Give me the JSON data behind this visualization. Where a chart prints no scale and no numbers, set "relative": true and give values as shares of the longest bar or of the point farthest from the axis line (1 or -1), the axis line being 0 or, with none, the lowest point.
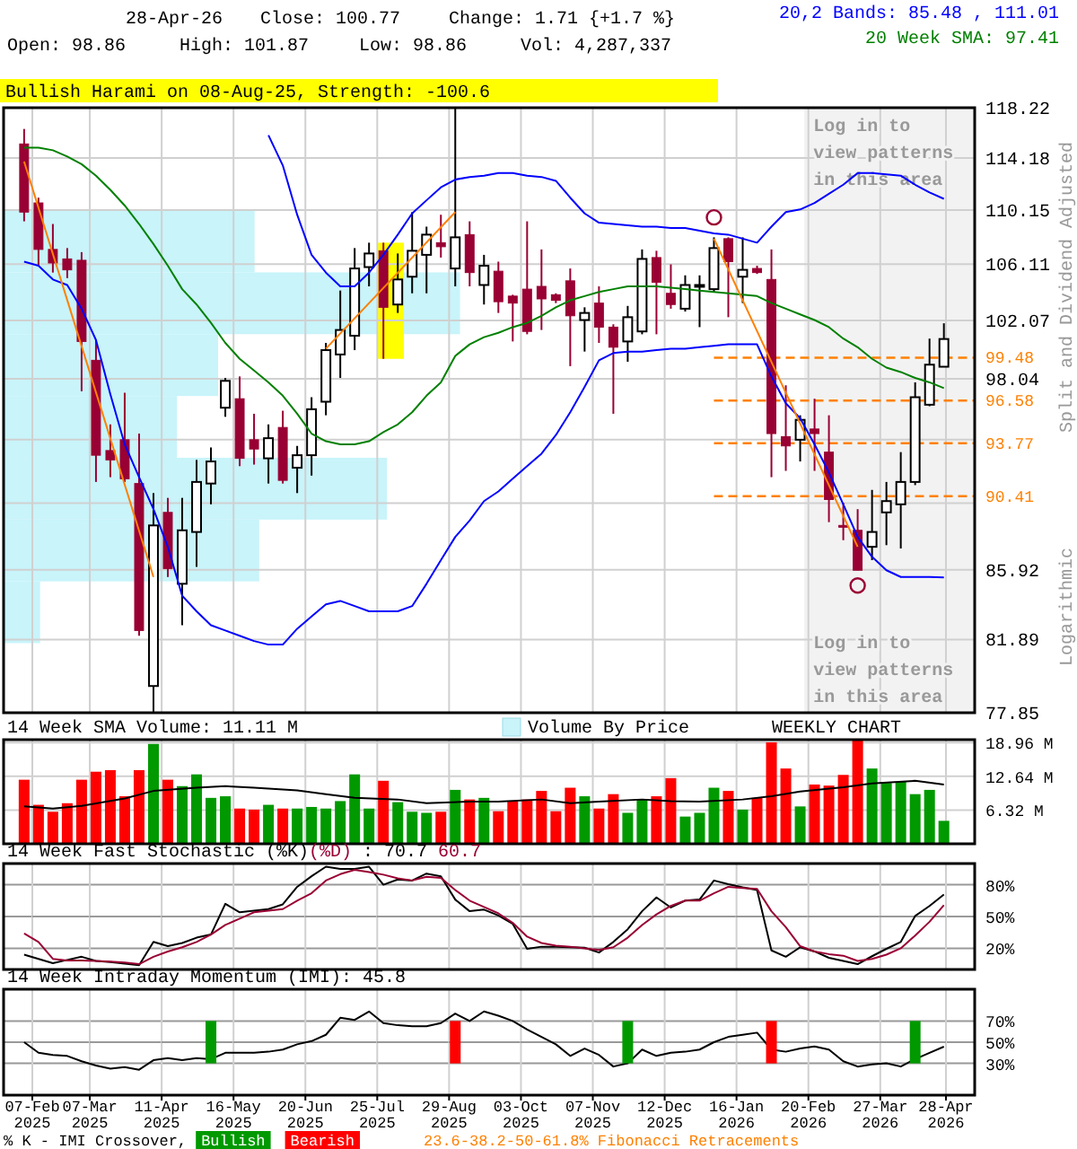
{
  "chart_data": [
    {
      "type": "candlestick",
      "title": "Bullish Harami on 08-Aug-25, Strength: -100.6",
      "log": true,
      "grid": true,
      "legend": "top right",
      "tick_labels": "y",
      "x": [
        "2025-02-03",
        "2025-02-10",
        "2025-02-17",
        "2025-02-24",
        "2025-03-03",
        "2025-03-10",
        "2025-03-17",
        "2025-03-24",
        "2025-03-31",
        "2025-04-07",
        "2025-04-14",
        "2025-04-21",
        "2025-04-28",
        "2025-05-05",
        "2025-05-12",
        "2025-05-19",
        "2025-05-26",
        "2025-06-02",
        "2025-06-09",
        "2025-06-16",
        "2025-06-23",
        "2025-06-30",
        "2025-07-07",
        "2025-07-14",
        "2025-07-21",
        "2025-07-28",
        "2025-08-04",
        "2025-08-11",
        "2025-08-18",
        "2025-08-25",
        "2025-09-01",
        "2025-09-08",
        "2025-09-15",
        "2025-09-22",
        "2025-09-29",
        "2025-10-06",
        "2025-10-13",
        "2025-10-20",
        "2025-10-27",
        "2025-11-03",
        "2025-11-10",
        "2025-11-17",
        "2025-11-24",
        "2025-12-01",
        "2025-12-08",
        "2025-12-15",
        "2025-12-22",
        "2025-12-29",
        "2026-01-05",
        "2026-01-12",
        "2026-01-19",
        "2026-01-26",
        "2026-02-02",
        "2026-02-09",
        "2026-02-16",
        "2026-02-23",
        "2026-03-02",
        "2026-03-09",
        "2026-03-16",
        "2026-03-23",
        "2026-03-30",
        "2026-04-06",
        "2026-04-13",
        "2026-04-20",
        "2026-04-27"
      ],
      "ohlc": [
        [
          115.3,
          116.5,
          109.3,
          110.0
        ],
        [
          110.7,
          111.1,
          106.0,
          107.2
        ],
        [
          107.2,
          109.1,
          105.5,
          106.2
        ],
        [
          106.5,
          107.3,
          105.1,
          105.7
        ],
        [
          106.4,
          107.0,
          97.2,
          100.6
        ],
        [
          99.3,
          100.7,
          91.3,
          93.0
        ],
        [
          93.3,
          95.0,
          91.6,
          92.7
        ],
        [
          94.0,
          97.1,
          91.3,
          91.5
        ],
        [
          91.2,
          94.4,
          82.1,
          82.4
        ],
        [
          79.3,
          90.6,
          77.9,
          88.6
        ],
        [
          89.4,
          90.3,
          85.5,
          86.0
        ],
        [
          85.1,
          90.3,
          82.7,
          88.3
        ],
        [
          88.2,
          92.7,
          86.1,
          91.3
        ],
        [
          91.2,
          93.5,
          89.9,
          92.6
        ],
        [
          96.1,
          98.1,
          95.5,
          97.9
        ],
        [
          96.7,
          98.2,
          92.3,
          92.8
        ],
        [
          94.0,
          95.7,
          92.4,
          93.4
        ],
        [
          92.8,
          95.0,
          91.2,
          94.1
        ],
        [
          94.8,
          95.9,
          91.2,
          91.4
        ],
        [
          92.2,
          93.6,
          90.6,
          93.0
        ],
        [
          93.0,
          96.8,
          91.7,
          96.0
        ],
        [
          96.5,
          100.5,
          95.6,
          100.0
        ],
        [
          99.7,
          104.2,
          98.1,
          101.4
        ],
        [
          101.0,
          107.3,
          100.0,
          105.8
        ],
        [
          105.9,
          107.7,
          104.5,
          106.9
        ],
        [
          107.1,
          107.7,
          99.4,
          103.0
        ],
        [
          103.2,
          106.9,
          102.6,
          105.0
        ],
        [
          105.2,
          110.0,
          104.0,
          107.1
        ],
        [
          106.8,
          108.9,
          104.0,
          108.3
        ],
        [
          107.7,
          109.8,
          106.6,
          107.4
        ],
        [
          105.8,
          118.2,
          104.5,
          108.1
        ],
        [
          108.3,
          109.3,
          104.5,
          105.5
        ],
        [
          104.6,
          106.8,
          103.2,
          106.0
        ],
        [
          105.6,
          106.3,
          102.6,
          103.4
        ],
        [
          103.8,
          103.9,
          100.6,
          103.3
        ],
        [
          104.3,
          109.3,
          101.1,
          101.3
        ],
        [
          104.5,
          107.2,
          101.4,
          103.6
        ],
        [
          103.9,
          104.0,
          103.3,
          103.5
        ],
        [
          104.9,
          105.8,
          98.9,
          102.4
        ],
        [
          102.1,
          103.0,
          99.9,
          102.6
        ],
        [
          103.3,
          104.5,
          100.5,
          101.6
        ],
        [
          101.6,
          101.8,
          95.7,
          100.2
        ],
        [
          100.6,
          103.1,
          99.2,
          102.3
        ],
        [
          101.3,
          107.2,
          101.1,
          106.5
        ],
        [
          106.6,
          107.1,
          101.1,
          104.8
        ],
        [
          104.0,
          106.1,
          102.9,
          103.2
        ],
        [
          102.9,
          105.3,
          102.7,
          104.6
        ],
        [
          104.6,
          105.3,
          101.6,
          104.6
        ],
        [
          104.3,
          108.1,
          104.1,
          107.3
        ],
        [
          108.0,
          108.1,
          102.3,
          106.3
        ],
        [
          105.2,
          108.1,
          103.3,
          105.7
        ],
        [
          105.8,
          106.0,
          105.4,
          105.5
        ],
        [
          105.0,
          107.2,
          91.6,
          94.4
        ],
        [
          94.2,
          97.6,
          92.0,
          93.6
        ],
        [
          94.0,
          95.6,
          92.6,
          95.3
        ],
        [
          94.7,
          96.7,
          92.0,
          94.4
        ],
        [
          93.2,
          95.6,
          88.8,
          90.2
        ],
        [
          88.6,
          90.0,
          87.7,
          88.5
        ],
        [
          88.3,
          89.6,
          85.9,
          85.9
        ],
        [
          87.3,
          90.8,
          86.5,
          88.2
        ],
        [
          89.4,
          91.3,
          87.4,
          90.1
        ],
        [
          89.9,
          93.2,
          87.2,
          91.3
        ],
        [
          91.3,
          97.8,
          91.1,
          96.8
        ],
        [
          96.3,
          100.8,
          96.2,
          99.0
        ],
        [
          98.86,
          101.87,
          98.86,
          100.77
        ]
      ],
      "series": [
        {
          "type": "line",
          "name": "20,2 Bands: 85.48 , 111.01",
          "color": "#0000ff",
          "values": [
            null,
            null,
            null,
            null,
            null,
            null,
            null,
            null,
            null,
            null,
            null,
            null,
            null,
            null,
            null,
            null,
            null,
            116.0,
            113.6,
            109.8,
            106.8,
            105.5,
            104.5,
            104.5,
            105.5,
            106.8,
            108.3,
            109.9,
            110.9,
            111.9,
            112.5,
            112.7,
            112.8,
            113.0,
            113.0,
            112.8,
            112.7,
            112.4,
            111.1,
            109.9,
            109.2,
            109.1,
            109.0,
            108.9,
            108.9,
            108.8,
            108.8,
            108.6,
            108.4,
            108.3,
            108.0,
            107.7,
            108.9,
            110.0,
            110.2,
            110.7,
            111.4,
            112.1,
            113.0,
            113.0,
            112.9,
            112.8,
            112.1,
            111.5,
            111.01
          ]
        },
        {
          "type": "line",
          "color": "#0000ff",
          "values": [
            106.3,
            106.0,
            105.0,
            104.6,
            102.9,
            100.7,
            97.0,
            93.7,
            91.6,
            89.6,
            87.3,
            84.4,
            83.5,
            82.7,
            82.4,
            82.1,
            81.8,
            81.6,
            81.6,
            82.5,
            83.2,
            83.9,
            84.1,
            83.8,
            83.5,
            83.5,
            83.5,
            83.8,
            85.1,
            86.5,
            87.9,
            88.9,
            90.1,
            90.7,
            91.5,
            92.3,
            93.1,
            94.3,
            95.8,
            97.5,
            99.3,
            99.8,
            99.9,
            99.9,
            100.0,
            100.1,
            100.1,
            100.2,
            100.3,
            100.4,
            100.4,
            100.4,
            98.2,
            96.4,
            95.4,
            93.7,
            91.9,
            89.9,
            87.9,
            86.7,
            85.9,
            85.5,
            85.5,
            85.5,
            85.48
          ]
        },
        {
          "type": "line",
          "name": "20 Week SMA: 97.41",
          "color": "#008000",
          "values": [
            115.0,
            115.0,
            114.8,
            114.3,
            113.7,
            112.8,
            111.7,
            110.5,
            109.1,
            107.6,
            106.0,
            104.3,
            103.2,
            101.9,
            100.5,
            99.4,
            98.6,
            97.8,
            96.9,
            95.7,
            94.4,
            93.9,
            93.7,
            93.7,
            93.9,
            94.5,
            95.0,
            95.8,
            96.9,
            97.8,
            99.6,
            100.4,
            100.9,
            101.2,
            101.6,
            101.9,
            102.4,
            103.0,
            103.5,
            103.8,
            104.1,
            104.3,
            104.5,
            104.5,
            104.5,
            104.4,
            104.3,
            104.2,
            104.1,
            104.0,
            103.9,
            103.8,
            103.3,
            102.9,
            102.5,
            102.1,
            101.6,
            100.8,
            100.2,
            99.4,
            98.8,
            98.5,
            98.1,
            97.8,
            97.41
          ]
        },
        {
          "type": "line",
          "color": "#ff8000",
          "x": [
            "2025-02-03",
            "2025-04-07"
          ],
          "values": [
            113.9,
            85.5
          ]
        },
        {
          "type": "line",
          "color": "#ff8000",
          "x": [
            "2025-06-30",
            "2025-09-01"
          ],
          "values": [
            100.1,
            110.0
          ]
        },
        {
          "type": "line",
          "color": "#ff8000",
          "x": [
            "2026-01-05",
            "2026-03-16"
          ],
          "values": [
            108.0,
            87.3
          ]
        },
        {
          "type": "scatter",
          "marker": "circle",
          "color": "#990033",
          "x": [
            "2026-01-05",
            "2026-03-16"
          ],
          "values": [
            109.6,
            85.0
          ]
        }
      ],
      "xlim": [
        "2025-01-24",
        "2026-05-12"
      ],
      "xticks": [
        {
          "value": "2025-02-07",
          "label": null
        },
        {
          "value": "2025-03-07",
          "label": null
        },
        {
          "value": "2025-04-11",
          "label": null
        },
        {
          "value": "2025-05-16",
          "label": null
        },
        {
          "value": "2025-06-20",
          "label": null
        },
        {
          "value": "2025-07-25",
          "label": null
        },
        {
          "value": "2025-08-29",
          "label": null
        },
        {
          "value": "2025-10-03",
          "label": null
        },
        {
          "value": "2025-11-07",
          "label": null
        },
        {
          "value": "2025-12-12",
          "label": null
        },
        {
          "value": "2026-01-16",
          "label": null
        },
        {
          "value": "2026-02-20",
          "label": null
        },
        {
          "value": "2026-03-27",
          "label": null
        },
        {
          "value": "2026-04-28",
          "label": null
        }
      ],
      "ylim": [
        77.85,
        118.22
      ],
      "yticks": [
        118.22,
        114.18,
        110.15,
        106.11,
        102.07,
        98.04,
        {
          "value": 94.0,
          "label": null
        },
        {
          "value": 89.97,
          "label": null
        },
        85.92,
        81.89,
        77.85
      ],
      "ref_lines": [
        {
          "axis": "y",
          "value": 99.48,
          "label": "99.48",
          "color": "#ff8000",
          "line_style": "dashed"
        },
        {
          "axis": "y",
          "value": 96.58,
          "label": "96.58",
          "color": "#ff8000",
          "line_style": "dashed"
        },
        {
          "axis": "y",
          "value": 93.77,
          "label": "93.77",
          "color": "#ff8000",
          "line_style": "dashed"
        },
        {
          "axis": "y",
          "value": 90.41,
          "label": "90.41",
          "color": "#ff8000",
          "line_style": "dashed"
        }
      ],
      "bands": [
        {
          "axis": "x",
          "from": "2025-07-25",
          "to": "2025-08-07",
          "color": "#ffff00"
        },
        {
          "axis": "x",
          "from": "2026-02-18",
          "to": "2026-05-12",
          "color": "#f2f2f2",
          "label": "Log in to view patterns in this area"
        }
      ],
      "annotations": [
        "28-Apr-26",
        "Close: 100.77",
        "Change: 1.71 {+1.7 %}",
        "Open: 98.86",
        "High: 101.87",
        "Low: 98.86",
        "Vol: 4,287,337",
        "Split and Dividend Adjusted",
        "Logarithmic",
        "23.6-38.2-50-61.8% Fibonacci Retracements",
        "Log in to view patterns in this area"
      ]
    },
    {
      "type": "bar",
      "orientation": "horizontal",
      "relative": true,
      "tick_labels": false,
      "legend": "bottom",
      "categories": [
        null,
        null,
        null,
        null,
        null,
        null,
        null
      ],
      "series": [
        {
          "name": "Volume By Price",
          "color": "#c8f4fa",
          "values": [
            0.55,
            1,
            0.47,
            0.38,
            0.84,
            0.56,
            0.08
          ]
        }
      ]
    },
    {
      "type": "bar",
      "title": "14 Week SMA Volume: 11.11 M",
      "grid": true,
      "tick_labels": "y",
      "x": [
        "2025-02-03",
        "2025-02-10",
        "2025-02-17",
        "2025-02-24",
        "2025-03-03",
        "2025-03-10",
        "2025-03-17",
        "2025-03-24",
        "2025-03-31",
        "2025-04-07",
        "2025-04-14",
        "2025-04-21",
        "2025-04-28",
        "2025-05-05",
        "2025-05-12",
        "2025-05-19",
        "2025-05-26",
        "2025-06-02",
        "2025-06-09",
        "2025-06-16",
        "2025-06-23",
        "2025-06-30",
        "2025-07-07",
        "2025-07-14",
        "2025-07-21",
        "2025-07-28",
        "2025-08-04",
        "2025-08-11",
        "2025-08-18",
        "2025-08-25",
        "2025-09-01",
        "2025-09-08",
        "2025-09-15",
        "2025-09-22",
        "2025-09-29",
        "2025-10-06",
        "2025-10-13",
        "2025-10-20",
        "2025-10-27",
        "2025-11-03",
        "2025-11-10",
        "2025-11-17",
        "2025-11-24",
        "2025-12-01",
        "2025-12-08",
        "2025-12-15",
        "2025-12-22",
        "2025-12-29",
        "2026-01-05",
        "2026-01-12",
        "2026-01-19",
        "2026-01-26",
        "2026-02-02",
        "2026-02-09",
        "2026-02-16",
        "2026-02-23",
        "2026-03-02",
        "2026-03-09",
        "2026-03-16",
        "2026-03-23",
        "2026-03-30",
        "2026-04-06",
        "2026-04-13",
        "2026-04-20",
        "2026-04-27"
      ],
      "series": [
        {
          "values": [
            12.0,
            7.3,
            6.0,
            7.6,
            12.0,
            13.5,
            13.8,
            8.9,
            13.8,
            18.7,
            12.0,
            10.8,
            13.0,
            8.6,
            8.9,
            6.6,
            6.4,
            7.3,
            6.6,
            6.6,
            6.9,
            6.6,
            8.0,
            13.0,
            6.6,
            11.8,
            7.8,
            6.0,
            5.8,
            6.0,
            10.1,
            8.3,
            8.6,
            6.1,
            8.0,
            8.3,
            9.9,
            6.1,
            10.5,
            8.9,
            6.6,
            9.3,
            5.8,
            8.3,
            8.9,
            12.3,
            5.1,
            5.8,
            10.5,
            9.9,
            6.4,
            8.6,
            19.0,
            14.1,
            7.0,
            11.1,
            10.9,
            12.9,
            19.5,
            14.1,
            11.4,
            11.6,
            9.3,
            10.1,
            4.3
          ],
          "colors": [
            "#ff0000",
            "#ff0000",
            "#ff0000",
            "#ff0000",
            "#ff0000",
            "#ff0000",
            "#ff0000",
            "#ff0000",
            "#ff0000",
            "#009900",
            "#ff0000",
            "#009900",
            "#009900",
            "#009900",
            "#009900",
            "#ff0000",
            "#ff0000",
            "#009900",
            "#ff0000",
            "#009900",
            "#009900",
            "#009900",
            "#009900",
            "#009900",
            "#009900",
            "#ff0000",
            "#009900",
            "#009900",
            "#009900",
            "#ff0000",
            "#009900",
            "#ff0000",
            "#009900",
            "#ff0000",
            "#ff0000",
            "#ff0000",
            "#ff0000",
            "#ff0000",
            "#ff0000",
            "#009900",
            "#ff0000",
            "#ff0000",
            "#009900",
            "#009900",
            "#ff0000",
            "#ff0000",
            "#009900",
            "#009900",
            "#009900",
            "#ff0000",
            "#009900",
            "#ff0000",
            "#ff0000",
            "#ff0000",
            "#009900",
            "#ff0000",
            "#ff0000",
            "#ff0000",
            "#ff0000",
            "#009900",
            "#009900",
            "#009900",
            "#009900",
            "#009900",
            "#009900"
          ]
        },
        {
          "type": "line",
          "color": "#000000",
          "x": [
            "2025-02-03",
            "2025-02-17",
            "2025-03-03",
            "2025-03-24",
            "2025-04-07",
            "2025-04-28",
            "2025-05-12",
            "2025-05-26",
            "2025-06-16",
            "2025-06-30",
            "2025-07-14",
            "2025-08-04",
            "2025-08-18",
            "2025-09-08",
            "2025-09-22",
            "2025-10-13",
            "2025-10-27",
            "2025-11-10",
            "2025-12-01",
            "2025-12-15",
            "2025-12-29",
            "2026-01-19",
            "2026-02-02",
            "2026-02-16",
            "2026-03-09",
            "2026-03-23",
            "2026-04-13",
            "2026-04-27"
          ],
          "values": [
            7.0,
            6.6,
            7.1,
            8.5,
            9.9,
            10.5,
            10.8,
            10.5,
            10.0,
            9.3,
            8.6,
            8.3,
            7.6,
            7.9,
            7.9,
            8.3,
            7.6,
            7.9,
            8.3,
            8.0,
            7.9,
            8.3,
            8.9,
            9.8,
            10.6,
            11.3,
            11.8,
            11.1
          ]
        }
      ],
      "xlim": [
        "2025-01-24",
        "2026-05-12"
      ],
      "xticks": [
        {
          "value": "2025-02-07",
          "label": null
        },
        {
          "value": "2025-03-07",
          "label": null
        },
        {
          "value": "2025-04-11",
          "label": null
        },
        {
          "value": "2025-05-16",
          "label": null
        },
        {
          "value": "2025-06-20",
          "label": null
        },
        {
          "value": "2025-07-25",
          "label": null
        },
        {
          "value": "2025-08-29",
          "label": null
        },
        {
          "value": "2025-10-03",
          "label": null
        },
        {
          "value": "2025-11-07",
          "label": null
        },
        {
          "value": "2025-12-12",
          "label": null
        },
        {
          "value": "2026-01-16",
          "label": null
        },
        {
          "value": "2026-02-20",
          "label": null
        },
        {
          "value": "2026-03-27",
          "label": null
        },
        {
          "value": "2026-04-28",
          "label": null
        }
      ],
      "ylim": [
        0,
        19.5
      ],
      "yticks": [
        {
          "value": 6.32,
          "label": "6.32 M"
        },
        {
          "value": 12.64,
          "label": "12.64 M"
        },
        {
          "value": 18.96,
          "label": "18.96 M"
        }
      ],
      "annotations": [
        "WEEKLY CHART"
      ]
    },
    {
      "type": "line",
      "title": "14 Week Fast Stochastic",
      "grid": true,
      "legend": "top left",
      "tick_labels": "y",
      "x": [
        "2025-02-03",
        "2025-02-10",
        "2025-02-17",
        "2025-02-24",
        "2025-03-03",
        "2025-03-10",
        "2025-03-17",
        "2025-03-24",
        "2025-03-31",
        "2025-04-07",
        "2025-04-14",
        "2025-04-21",
        "2025-04-28",
        "2025-05-05",
        "2025-05-12",
        "2025-05-19",
        "2025-05-26",
        "2025-06-02",
        "2025-06-09",
        "2025-06-16",
        "2025-06-23",
        "2025-06-30",
        "2025-07-07",
        "2025-07-14",
        "2025-07-21",
        "2025-07-28",
        "2025-08-04",
        "2025-08-11",
        "2025-08-18",
        "2025-08-25",
        "2025-09-01",
        "2025-09-08",
        "2025-09-15",
        "2025-09-22",
        "2025-09-29",
        "2025-10-06",
        "2025-10-13",
        "2025-10-20",
        "2025-10-27",
        "2025-11-03",
        "2025-11-10",
        "2025-11-17",
        "2025-11-24",
        "2025-12-01",
        "2025-12-08",
        "2025-12-15",
        "2025-12-22",
        "2025-12-29",
        "2026-01-05",
        "2026-01-12",
        "2026-01-19",
        "2026-01-26",
        "2026-02-02",
        "2026-02-09",
        "2026-02-16",
        "2026-02-23",
        "2026-03-02",
        "2026-03-09",
        "2026-03-16",
        "2026-03-23",
        "2026-03-30",
        "2026-04-06",
        "2026-04-13",
        "2026-04-20",
        "2026-04-27"
      ],
      "series": [
        {
          "name": "(%K)",
          "color": "#000000",
          "values": [
            14,
            10,
            6,
            9,
            12,
            8,
            7,
            5.5,
            4,
            26,
            22,
            25,
            30,
            33,
            62,
            54,
            55.5,
            57,
            61.5,
            78,
            88,
            97,
            95,
            95,
            97,
            80,
            85,
            84,
            90.5,
            88,
            66,
            55,
            56.5,
            51,
            43,
            19.5,
            21.5,
            21.5,
            21,
            20.5,
            16,
            26,
            38,
            55,
            68,
            58.5,
            65,
            66,
            84,
            80.5,
            77.5,
            75,
            18,
            12,
            21,
            17,
            11,
            8,
            5,
            12.5,
            19.5,
            26,
            50.5,
            60,
            70.7
          ]
        },
        {
          "name": "(%D)",
          "color": "#990033",
          "values": [
            34,
            26,
            10,
            8.5,
            8.5,
            8,
            7.5,
            6.5,
            5,
            12,
            17,
            21,
            26,
            33,
            42,
            48,
            54,
            55.5,
            57,
            65,
            72,
            84,
            90,
            94,
            92,
            89.5,
            86,
            84,
            87.5,
            86.5,
            75,
            65,
            59,
            53,
            44,
            31,
            25,
            22.5,
            21.5,
            20,
            18.5,
            21,
            30,
            42,
            52,
            60,
            65,
            65,
            72,
            78,
            77,
            76,
            55,
            40,
            22,
            17,
            14.5,
            13,
            8,
            10,
            14,
            20,
            32,
            45,
            60.7
          ]
        }
      ],
      "xlim": [
        "2025-01-24",
        "2026-05-12"
      ],
      "xticks": [
        {
          "value": "2025-02-07",
          "label": null
        },
        {
          "value": "2025-03-07",
          "label": null
        },
        {
          "value": "2025-04-11",
          "label": null
        },
        {
          "value": "2025-05-16",
          "label": null
        },
        {
          "value": "2025-06-20",
          "label": null
        },
        {
          "value": "2025-07-25",
          "label": null
        },
        {
          "value": "2025-08-29",
          "label": null
        },
        {
          "value": "2025-10-03",
          "label": null
        },
        {
          "value": "2025-11-07",
          "label": null
        },
        {
          "value": "2025-12-12",
          "label": null
        },
        {
          "value": "2026-01-16",
          "label": null
        },
        {
          "value": "2026-02-20",
          "label": null
        },
        {
          "value": "2026-03-27",
          "label": null
        },
        {
          "value": "2026-04-28",
          "label": null
        }
      ],
      "ylim": [
        0,
        100
      ],
      "yticks": [
        {
          "value": 20,
          "label": "20%"
        },
        {
          "value": 80,
          "label": "80%"
        },
        {
          "value": 50,
          "label": "50%"
        }
      ],
      "ref_lines": [
        {
          "axis": "y",
          "value": 50,
          "color": "#999999",
          "line_style": "dashed"
        }
      ],
      "annotations": [
        ": 70.7",
        "60.7"
      ]
    },
    {
      "type": "line",
      "title": "14 Week Intraday Momentum (IMI): 45.8",
      "grid": true,
      "legend": "bottom",
      "legend_title": "% K - IMI Crossover,",
      "x": [
        "2025-02-03",
        "2025-02-10",
        "2025-02-17",
        "2025-02-24",
        "2025-03-03",
        "2025-03-10",
        "2025-03-17",
        "2025-03-24",
        "2025-03-31",
        "2025-04-07",
        "2025-04-14",
        "2025-04-21",
        "2025-04-28",
        "2025-05-05",
        "2025-05-12",
        "2025-05-19",
        "2025-05-26",
        "2025-06-02",
        "2025-06-09",
        "2025-06-16",
        "2025-06-23",
        "2025-06-30",
        "2025-07-07",
        "2025-07-14",
        "2025-07-21",
        "2025-07-28",
        "2025-08-04",
        "2025-08-11",
        "2025-08-18",
        "2025-08-25",
        "2025-09-01",
        "2025-09-08",
        "2025-09-15",
        "2025-09-22",
        "2025-09-29",
        "2025-10-06",
        "2025-10-13",
        "2025-10-20",
        "2025-10-27",
        "2025-11-03",
        "2025-11-10",
        "2025-11-17",
        "2025-11-24",
        "2025-12-01",
        "2025-12-08",
        "2025-12-15",
        "2025-12-22",
        "2025-12-29",
        "2026-01-05",
        "2026-01-12",
        "2026-01-19",
        "2026-01-26",
        "2026-02-02",
        "2026-02-09",
        "2026-02-16",
        "2026-02-23",
        "2026-03-02",
        "2026-03-09",
        "2026-03-16",
        "2026-03-23",
        "2026-03-30",
        "2026-04-06",
        "2026-04-13",
        "2026-04-20",
        "2026-04-27"
      ],
      "series": [
        {
          "color": "#000000",
          "values": [
            50,
            40,
            38,
            37,
            32,
            28,
            25,
            26.5,
            24,
            33,
            35,
            33,
            35,
            34,
            40,
            40,
            40,
            41,
            43,
            48,
            51,
            57,
            73,
            71,
            79,
            68,
            66,
            65,
            65,
            68,
            77,
            70,
            79,
            75,
            70,
            62,
            55,
            48,
            37,
            44,
            38,
            27,
            30,
            43,
            37,
            40,
            41,
            43,
            50,
            55,
            57,
            59,
            43,
            41,
            44,
            46,
            43,
            32,
            27,
            29,
            30,
            27,
            34,
            40,
            45.8
          ]
        },
        {
          "type": "bar",
          "name": "Bullish",
          "color": "#009900",
          "x": [
            "2025-05-05",
            "2025-11-24",
            "2026-04-13"
          ],
          "base": [
            30,
            30,
            30
          ],
          "values": [
            40,
            40,
            40
          ]
        },
        {
          "type": "bar",
          "name": "Bearish",
          "color": "#ff0000",
          "x": [
            "2025-09-01",
            "2026-02-02"
          ],
          "base": [
            30,
            30
          ],
          "values": [
            40,
            40
          ]
        }
      ],
      "xlim": [
        "2025-01-24",
        "2026-05-12"
      ],
      "xticks": [
        {
          "value": "2025-02-07",
          "label": "07-Feb\n2025"
        },
        {
          "value": "2025-03-07",
          "label": "07-Mar\n2025"
        },
        {
          "value": "2025-04-11",
          "label": "11-Apr\n2025"
        },
        {
          "value": "2025-05-16",
          "label": "16-May\n2025"
        },
        {
          "value": "2025-06-20",
          "label": "20-Jun\n2025"
        },
        {
          "value": "2025-07-25",
          "label": "25-Jul\n2025"
        },
        {
          "value": "2025-08-29",
          "label": "29-Aug\n2025"
        },
        {
          "value": "2025-10-03",
          "label": "03-Oct\n2025"
        },
        {
          "value": "2025-11-07",
          "label": "07-Nov\n2025"
        },
        {
          "value": "2025-12-12",
          "label": "12-Dec\n2025"
        },
        {
          "value": "2026-01-16",
          "label": "16-Jan\n2026"
        },
        {
          "value": "2026-02-20",
          "label": "20-Feb\n2026"
        },
        {
          "value": "2026-03-27",
          "label": "27-Mar\n2026"
        },
        {
          "value": "2026-04-28",
          "label": "28-Apr\n2026"
        }
      ],
      "ylim": [
        0,
        100
      ],
      "yticks": [
        {
          "value": 30,
          "label": "30%"
        },
        {
          "value": 70,
          "label": "70%"
        },
        {
          "value": 50,
          "label": "50%"
        }
      ],
      "ref_lines": [
        {
          "axis": "y",
          "value": 50,
          "color": "#999999",
          "line_style": "dashed"
        }
      ]
    }
  ]
}
